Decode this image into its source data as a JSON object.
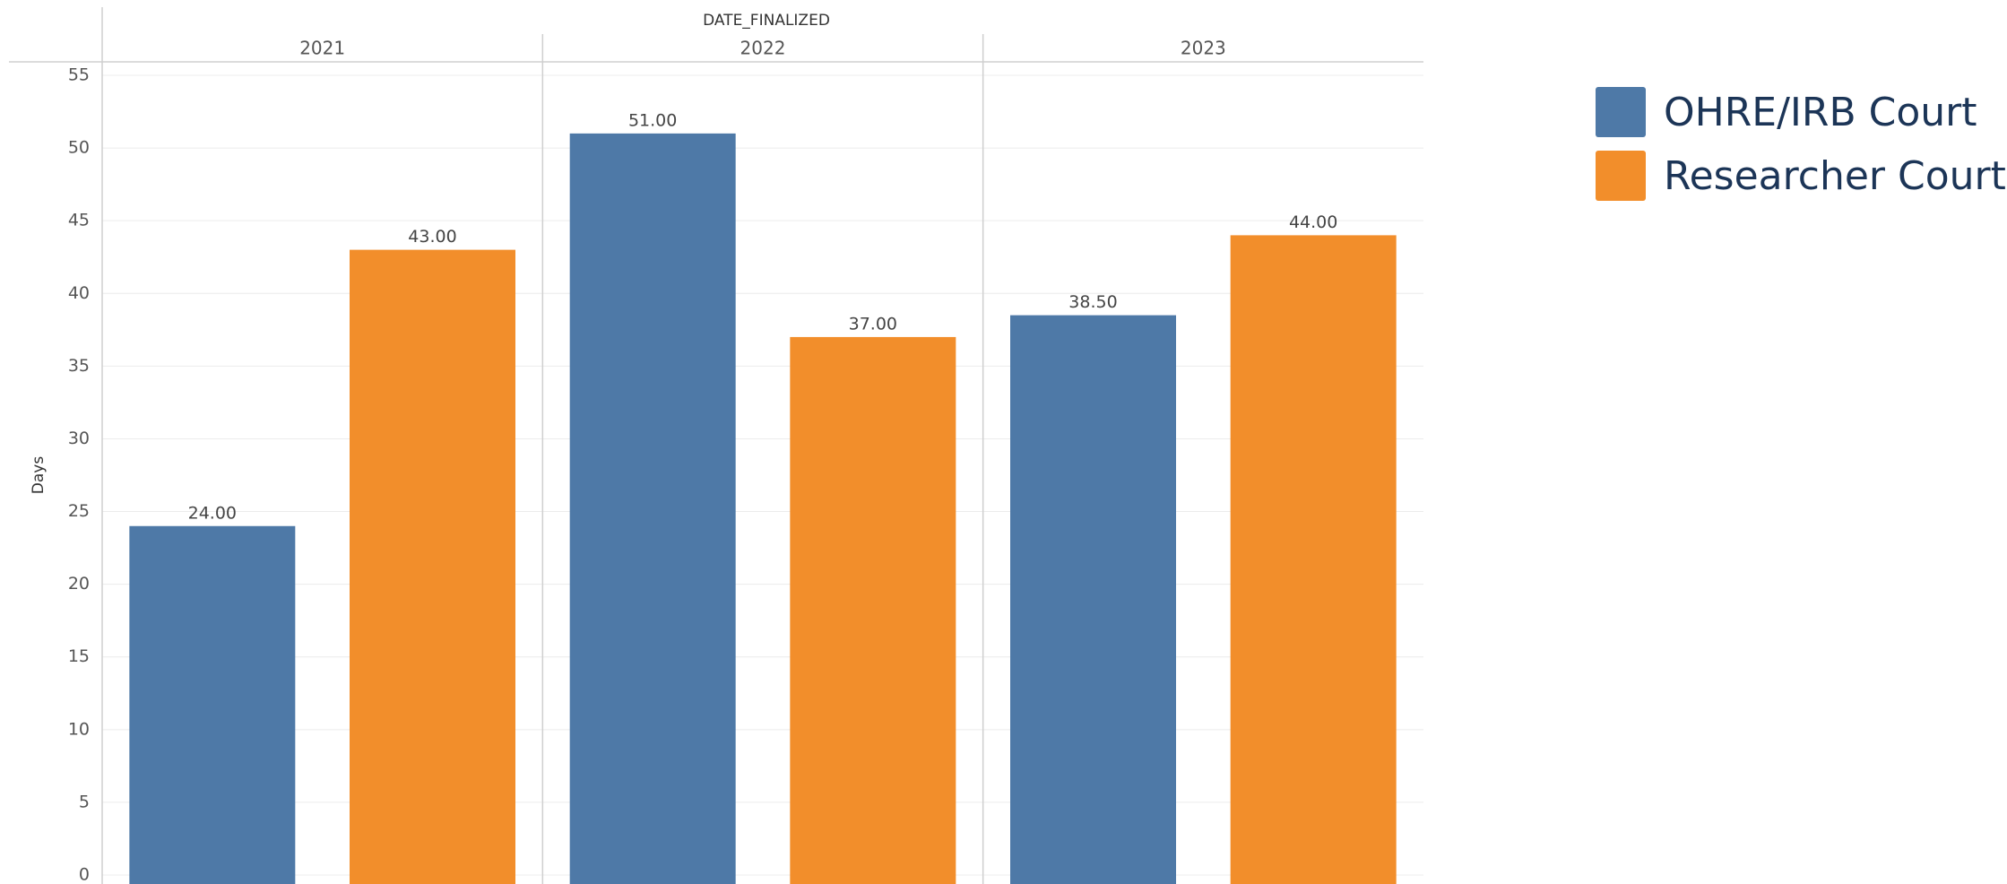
{
  "chart_data": {
    "type": "bar",
    "title": "",
    "column_header": "DATE_FINALIZED",
    "ylabel": "Days",
    "xlabel": "",
    "ylim": [
      0,
      55
    ],
    "yticks": [
      0,
      5,
      10,
      15,
      20,
      25,
      30,
      35,
      40,
      45,
      50,
      55
    ],
    "categories": [
      "2021",
      "2022",
      "2023"
    ],
    "series": [
      {
        "name": "OHRE/IRB Court",
        "color": "#4e79a7",
        "values": [
          24.0,
          51.0,
          38.5
        ],
        "labels": [
          "24.00",
          "51.00",
          "38.50"
        ]
      },
      {
        "name": "Researcher Court",
        "color": "#f28e2b",
        "values": [
          43.0,
          37.0,
          44.0
        ],
        "labels": [
          "43.00",
          "37.00",
          "44.00"
        ]
      }
    ],
    "grid": true,
    "legend": "right"
  },
  "legend": {
    "items": [
      {
        "label": "OHRE/IRB Court",
        "color": "#4e79a7"
      },
      {
        "label": "Researcher Court",
        "color": "#f28e2b"
      }
    ]
  }
}
